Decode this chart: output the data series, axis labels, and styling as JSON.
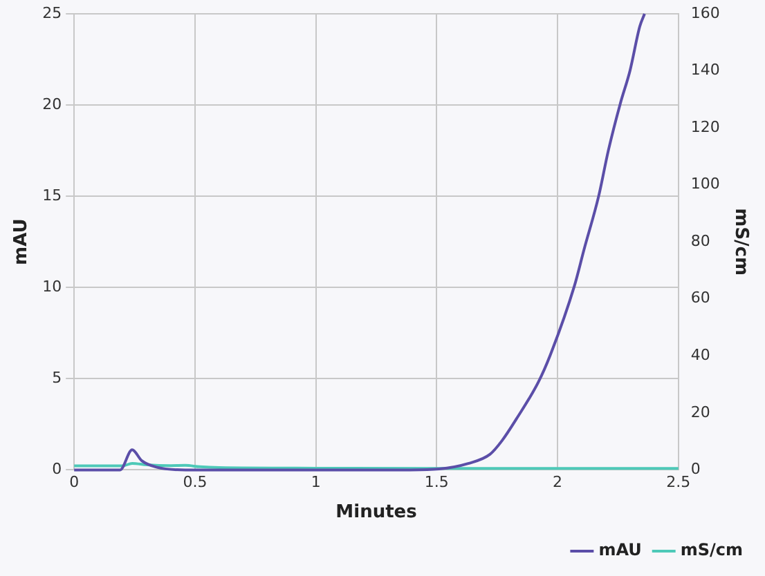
{
  "chart_data": {
    "type": "line",
    "xlabel": "Minutes",
    "ylabel": "mAU",
    "y2label": "mS/cm",
    "xlim": [
      0,
      2.5
    ],
    "xticks": [
      0,
      0.5,
      1,
      1.5,
      2,
      2.5
    ],
    "ylim": [
      0,
      25
    ],
    "yticks": [
      0,
      5,
      10,
      15,
      20,
      25
    ],
    "y2lim": [
      0,
      160
    ],
    "y2ticks": [
      0,
      20,
      40,
      60,
      80,
      100,
      120,
      140,
      160
    ],
    "grid": true,
    "legend": "bottom right",
    "marker": "none",
    "line_style": "solid",
    "series": [
      {
        "name": "mAU",
        "color": "#5b4ea8",
        "x": [
          0,
          0.16,
          0.19,
          0.24,
          0.28,
          0.34,
          0.46,
          0.57,
          0.81,
          1.39,
          1.51,
          1.63,
          1.72,
          1.77,
          1.83,
          1.92,
          1.97,
          2.07,
          2.11,
          2.17,
          2.21,
          2.26,
          2.3,
          2.34,
          2.36
        ],
        "values": [
          0,
          0,
          0,
          1.1,
          0.5,
          0.15,
          0,
          0,
          0,
          0,
          0.05,
          0.35,
          0.85,
          1.6,
          2.8,
          4.8,
          6.3,
          10.1,
          12.1,
          15,
          17.5,
          20.1,
          21.9,
          24.3,
          25
        ]
      },
      {
        "name": "mS/cm",
        "color": "#4ec9b8",
        "axis": "y2",
        "x": [
          0,
          0.2,
          0.24,
          0.3,
          0.4,
          0.46,
          0.52,
          0.6,
          1,
          1.5,
          2,
          2.5
        ],
        "values": [
          1.4,
          1.4,
          2.3,
          1.8,
          1.5,
          1.6,
          1.1,
          0.8,
          0.6,
          0.5,
          0.5,
          0.5
        ]
      }
    ]
  }
}
